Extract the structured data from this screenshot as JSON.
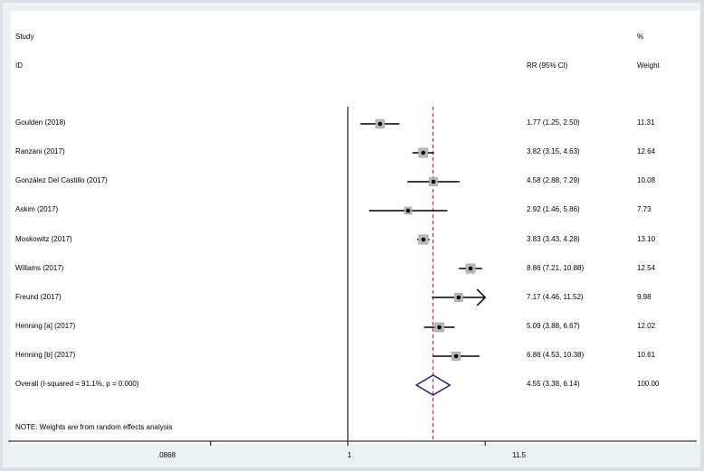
{
  "chart_data": {
    "type": "forest",
    "headers": {
      "study_line1": "Study",
      "study_line2": "ID",
      "estimate": "RR (95% CI)",
      "weight_line1": "%",
      "weight_line2": "Weight"
    },
    "studies": [
      {
        "label": "Goulden (2018)",
        "rr": 1.77,
        "lo": 1.25,
        "hi": 2.5,
        "ci_text": "1.77 (1.25, 2.50)",
        "weight": 11.31,
        "weight_text": "11.31"
      },
      {
        "label": "Ranzani (2017)",
        "rr": 3.82,
        "lo": 3.15,
        "hi": 4.63,
        "ci_text": "3.82 (3.15, 4.63)",
        "weight": 12.64,
        "weight_text": "12.64"
      },
      {
        "label": "González Del Castillo (2017)",
        "rr": 4.58,
        "lo": 2.88,
        "hi": 7.29,
        "ci_text": "4.58 (2.88, 7.29)",
        "weight": 10.08,
        "weight_text": "10.08"
      },
      {
        "label": "Askim (2017)",
        "rr": 2.92,
        "lo": 1.46,
        "hi": 5.86,
        "ci_text": "2.92 (1.46, 5.86)",
        "weight": 7.73,
        "weight_text": "7.73"
      },
      {
        "label": "Moskowitz (2017)",
        "rr": 3.83,
        "lo": 3.43,
        "hi": 4.28,
        "ci_text": "3.83 (3.43, 4.28)",
        "weight": 13.1,
        "weight_text": "13.10"
      },
      {
        "label": "Willams (2017)",
        "rr": 8.86,
        "lo": 7.21,
        "hi": 10.88,
        "ci_text": "8.86 (7.21, 10.88)",
        "weight": 12.54,
        "weight_text": "12.54"
      },
      {
        "label": "Freund (2017)",
        "rr": 7.17,
        "lo": 4.46,
        "hi": 11.52,
        "ci_text": "7.17 (4.46, 11.52)",
        "weight": 9.98,
        "weight_text": "9.98"
      },
      {
        "label": "Henning [a] (2017)",
        "rr": 5.09,
        "lo": 3.88,
        "hi": 6.67,
        "ci_text": "5.09 (3.88, 6.67)",
        "weight": 12.02,
        "weight_text": "12.02"
      },
      {
        "label": "Henning [b] (2017)",
        "rr": 6.86,
        "lo": 4.53,
        "hi": 10.38,
        "ci_text": "6.86 (4.53, 10.38)",
        "weight": 10.61,
        "weight_text": "10.61"
      }
    ],
    "overall": {
      "label": "Overall  (I-squared = 91.1%, p = 0.000)",
      "rr": 4.55,
      "lo": 3.38,
      "hi": 6.14,
      "ci_text": "4.55 (3.38, 6.14)",
      "weight": 100.0,
      "weight_text": "100.00"
    },
    "note": "NOTE: Weights are from random effects analysis",
    "x_scale": "log",
    "x_ticks": [
      {
        "value": 0.0868,
        "label": ".0868"
      },
      {
        "value": 1,
        "label": "1"
      },
      {
        "value": 11.5,
        "label": "11.5"
      }
    ],
    "null_value": 1,
    "display_max": 11.5,
    "colors": {
      "line": "#000000",
      "box": "#b8b8b8",
      "dot": "#000000",
      "diamond": "#1a237e",
      "overall_line": "#9c1c3a",
      "background": "#ffffff",
      "outer": "#eaf2f3"
    }
  }
}
